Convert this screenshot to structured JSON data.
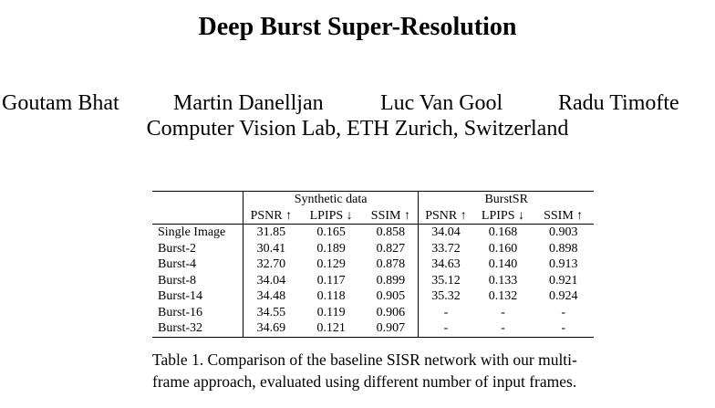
{
  "paper": {
    "title": "Deep Burst Super-Resolution",
    "authors": [
      "Goutam Bhat",
      "Martin Danelljan",
      "Luc Van Gool",
      "Radu Timofte"
    ],
    "affiliation": "Computer Vision Lab, ETH Zurich, Switzerland"
  },
  "table": {
    "groups": [
      "Synthetic data",
      "BurstSR"
    ],
    "metrics": [
      "PSNR ↑",
      "LPIPS ↓",
      "SSIM ↑",
      "PSNR ↑",
      "LPIPS ↓",
      "SSIM ↑"
    ],
    "rows": [
      {
        "label": "Single Image",
        "values": [
          "31.85",
          "0.165",
          "0.858",
          "34.04",
          "0.168",
          "0.903"
        ]
      },
      {
        "label": "Burst-2",
        "values": [
          "30.41",
          "0.189",
          "0.827",
          "33.72",
          "0.160",
          "0.898"
        ]
      },
      {
        "label": "Burst-4",
        "values": [
          "32.70",
          "0.129",
          "0.878",
          "34.63",
          "0.140",
          "0.913"
        ]
      },
      {
        "label": "Burst-8",
        "values": [
          "34.04",
          "0.117",
          "0.899",
          "35.12",
          "0.133",
          "0.921"
        ]
      },
      {
        "label": "Burst-14",
        "values": [
          "34.48",
          "0.118",
          "0.905",
          "35.32",
          "0.132",
          "0.924"
        ]
      },
      {
        "label": "Burst-16",
        "values": [
          "34.55",
          "0.119",
          "0.906",
          "-",
          "-",
          "-"
        ]
      },
      {
        "label": "Burst-32",
        "values": [
          "34.69",
          "0.121",
          "0.907",
          "-",
          "-",
          "-"
        ]
      }
    ],
    "caption": "Table 1. Comparison of the baseline SISR network with our multi-frame approach, evaluated using different number of input frames."
  }
}
